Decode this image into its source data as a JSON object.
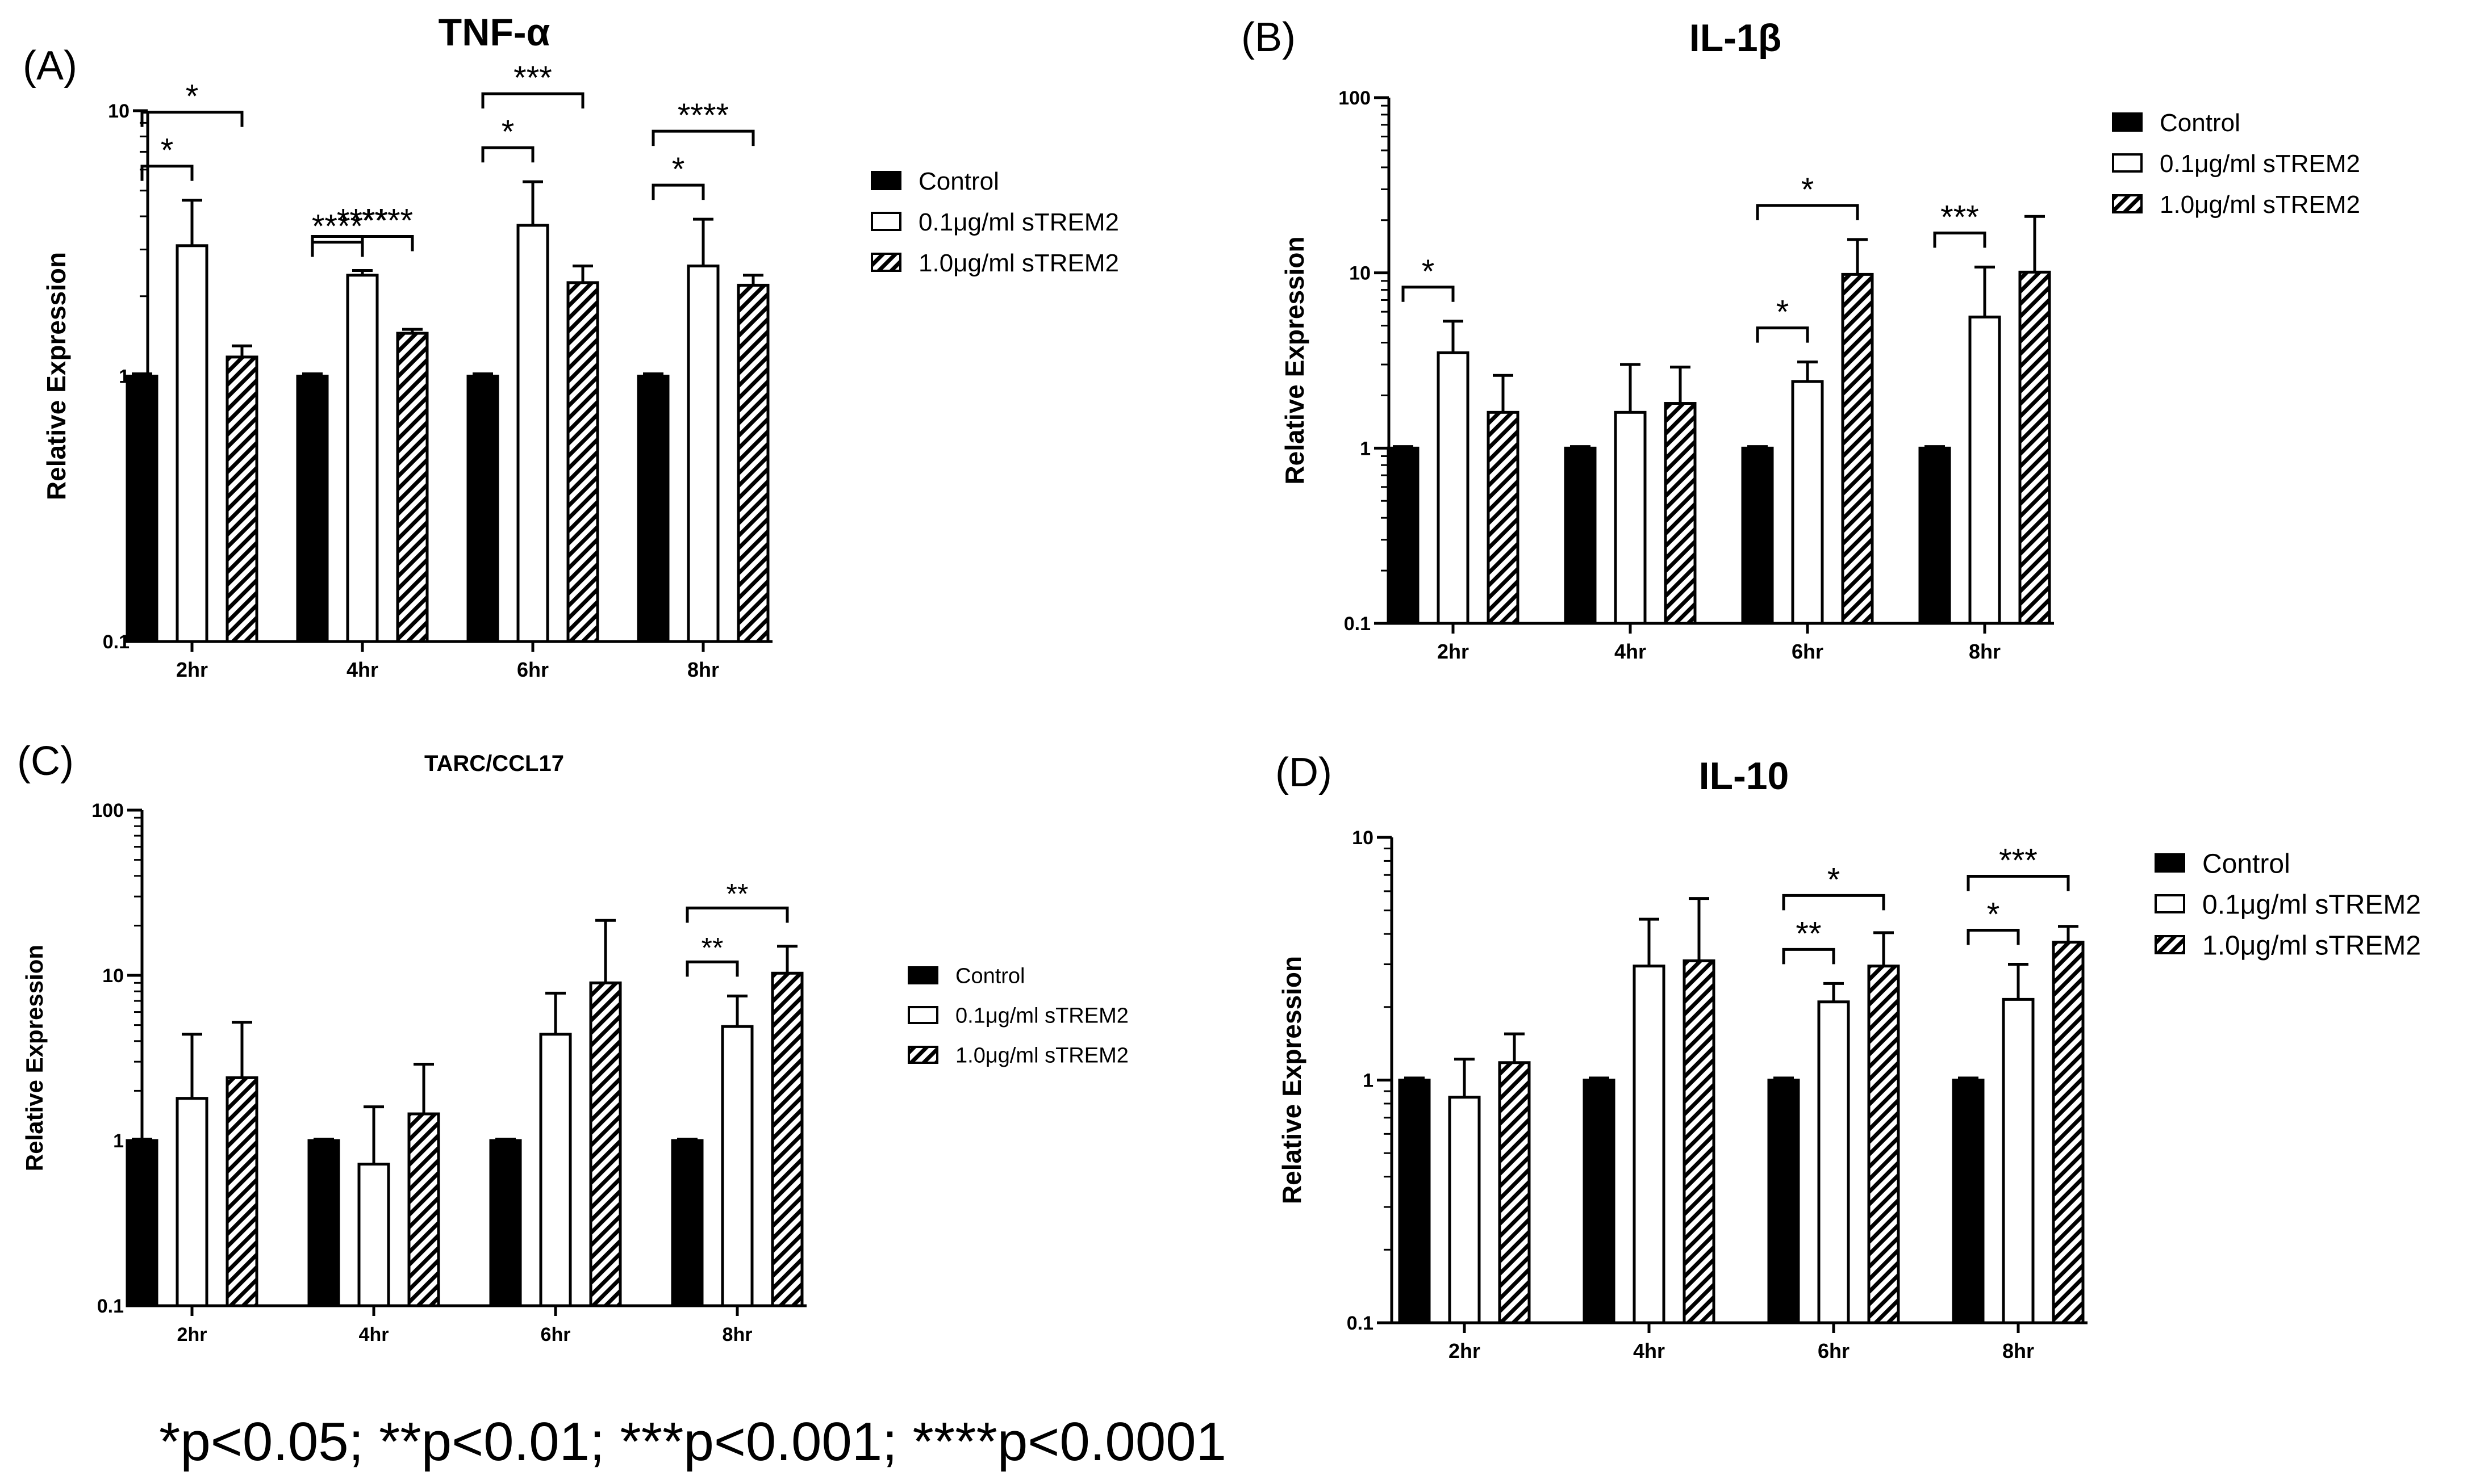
{
  "footnote": "*p<0.05; **p<0.01; ***p<0.001; ****p<0.0001",
  "colors": {
    "ink": "#000000",
    "paper": "#ffffff"
  },
  "chart_data": [
    {
      "type": "bar",
      "panel": "(A)",
      "title": "TNF-α",
      "ylabel": "Relative Expression",
      "xlabel": "",
      "yscale": "log",
      "ylim": [
        0.1,
        10
      ],
      "yticks": [
        "0.1",
        "1",
        "10"
      ],
      "categories": [
        "2hr",
        "4hr",
        "6hr",
        "8hr"
      ],
      "legend": [
        "Control",
        "0.1μg/ml sTREM2",
        "1.0μg/ml sTREM2"
      ],
      "legend_position": "right",
      "series": [
        {
          "name": "Control",
          "values": [
            1.0,
            1.0,
            1.0,
            1.0
          ],
          "errors": [
            1.02,
            1.02,
            1.02,
            1.02
          ]
        },
        {
          "name": "0.1μg/ml sTREM2",
          "values": [
            3.1,
            2.4,
            3.7,
            2.6
          ],
          "errors": [
            4.6,
            2.5,
            5.4,
            3.9
          ]
        },
        {
          "name": "1.0μg/ml sTREM2",
          "values": [
            1.18,
            1.45,
            2.25,
            2.2
          ],
          "errors": [
            1.3,
            1.5,
            2.6,
            2.4
          ]
        }
      ],
      "significance": [
        {
          "category": 0,
          "from": 0,
          "to": 1,
          "label": "*",
          "level": 1
        },
        {
          "category": 0,
          "from": 0,
          "to": 2,
          "label": "*",
          "level": 2
        },
        {
          "category": 1,
          "from": 0,
          "to": 1,
          "label": "****",
          "level": 0
        },
        {
          "category": 1,
          "from": 0,
          "to": 2,
          "label": "****",
          "level": 1
        },
        {
          "category": 1,
          "from": 1,
          "to": 2,
          "label": "****",
          "level": 2
        },
        {
          "category": 2,
          "from": 0,
          "to": 1,
          "label": "*",
          "level": 1
        },
        {
          "category": 2,
          "from": 0,
          "to": 2,
          "label": "***",
          "level": 2
        },
        {
          "category": 3,
          "from": 0,
          "to": 1,
          "label": "*",
          "level": 1
        },
        {
          "category": 3,
          "from": 0,
          "to": 2,
          "label": "****",
          "level": 2
        }
      ]
    },
    {
      "type": "bar",
      "panel": "(B)",
      "title": "IL-1β",
      "ylabel": "Relative Expression",
      "xlabel": "",
      "yscale": "log",
      "ylim": [
        0.1,
        100
      ],
      "yticks": [
        "0.1",
        "1",
        "10",
        "100"
      ],
      "categories": [
        "2hr",
        "4hr",
        "6hr",
        "8hr"
      ],
      "legend": [
        "Control",
        "0.1μg/ml sTREM2",
        "1.0μg/ml sTREM2"
      ],
      "legend_position": "top-right",
      "series": [
        {
          "name": "Control",
          "values": [
            1.0,
            1.0,
            1.0,
            1.0
          ],
          "errors": [
            1.02,
            1.02,
            1.02,
            1.02
          ]
        },
        {
          "name": "0.1μg/ml sTREM2",
          "values": [
            3.5,
            1.6,
            2.4,
            5.6
          ],
          "errors": [
            5.3,
            3.0,
            3.1,
            10.8
          ]
        },
        {
          "name": "1.0μg/ml sTREM2",
          "values": [
            1.6,
            1.8,
            9.8,
            10.1
          ],
          "errors": [
            2.6,
            2.9,
            15.5,
            21.0
          ]
        }
      ],
      "significance": [
        {
          "category": 0,
          "from": 0,
          "to": 1,
          "label": "*",
          "level": 1
        },
        {
          "category": 2,
          "from": 0,
          "to": 1,
          "label": "*",
          "level": 1
        },
        {
          "category": 2,
          "from": 0,
          "to": 2,
          "label": "*",
          "level": 2
        },
        {
          "category": 3,
          "from": 0,
          "to": 1,
          "label": "***",
          "level": 1
        }
      ]
    },
    {
      "type": "bar",
      "panel": "(C)",
      "title": "TARC/CCL17",
      "ylabel": "Relative Expression",
      "xlabel": "",
      "yscale": "log",
      "ylim": [
        0.1,
        100
      ],
      "yticks": [
        "0.1",
        "1",
        "10",
        "100"
      ],
      "categories": [
        "2hr",
        "4hr",
        "6hr",
        "8hr"
      ],
      "legend": [
        "Control",
        "0.1μg/ml sTREM2",
        "1.0μg/ml sTREM2"
      ],
      "legend_position": "right",
      "series": [
        {
          "name": "Control",
          "values": [
            1.0,
            1.0,
            1.0,
            1.0
          ],
          "errors": [
            1.02,
            1.02,
            1.02,
            1.02
          ]
        },
        {
          "name": "0.1μg/ml sTREM2",
          "values": [
            1.8,
            0.72,
            4.4,
            4.9
          ],
          "errors": [
            4.4,
            1.6,
            7.8,
            7.5
          ]
        },
        {
          "name": "1.0μg/ml sTREM2",
          "values": [
            2.4,
            1.45,
            9.0,
            10.3
          ],
          "errors": [
            5.2,
            2.9,
            21.5,
            15.0
          ]
        }
      ],
      "significance": [
        {
          "category": 3,
          "from": 0,
          "to": 1,
          "label": "**",
          "level": 1
        },
        {
          "category": 3,
          "from": 0,
          "to": 2,
          "label": "**",
          "level": 2
        }
      ]
    },
    {
      "type": "bar",
      "panel": "(D)",
      "title": "IL-10",
      "ylabel": "Relative Expression",
      "xlabel": "",
      "yscale": "log",
      "ylim": [
        0.1,
        10
      ],
      "yticks": [
        "0.1",
        "1",
        "10"
      ],
      "categories": [
        "2hr",
        "4hr",
        "6hr",
        "8hr"
      ],
      "legend": [
        "Control",
        "0.1μg/ml sTREM2",
        "1.0μg/ml sTREM2"
      ],
      "legend_position": "top-right",
      "series": [
        {
          "name": "Control",
          "values": [
            1.0,
            1.0,
            1.0,
            1.0
          ],
          "errors": [
            1.02,
            1.02,
            1.02,
            1.02
          ]
        },
        {
          "name": "0.1μg/ml sTREM2",
          "values": [
            0.85,
            2.95,
            2.1,
            2.15
          ],
          "errors": [
            1.22,
            4.6,
            2.5,
            3.0
          ]
        },
        {
          "name": "1.0μg/ml sTREM2",
          "values": [
            1.18,
            3.1,
            2.95,
            3.7
          ],
          "errors": [
            1.55,
            5.6,
            4.05,
            4.3
          ]
        }
      ],
      "significance": [
        {
          "category": 2,
          "from": 0,
          "to": 1,
          "label": "**",
          "level": 1
        },
        {
          "category": 2,
          "from": 0,
          "to": 2,
          "label": "*",
          "level": 2
        },
        {
          "category": 3,
          "from": 0,
          "to": 1,
          "label": "*",
          "level": 1
        },
        {
          "category": 3,
          "from": 0,
          "to": 2,
          "label": "***",
          "level": 2
        }
      ]
    }
  ]
}
